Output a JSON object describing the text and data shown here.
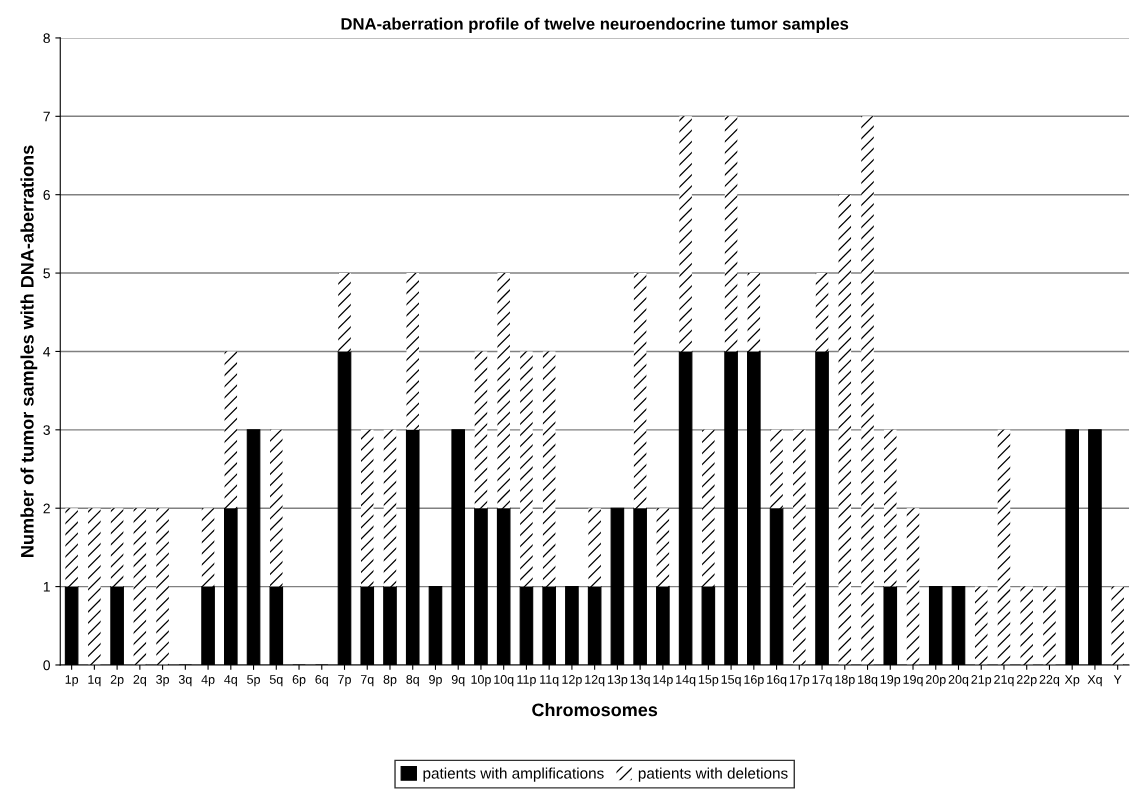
{
  "chart_data": {
    "type": "bar",
    "stacked": true,
    "title": "DNA-aberration profile of twelve neuroendocrine tumor samples",
    "xlabel": "Chromosomes",
    "ylabel": "Number of tumor samples with DNA-aberrations",
    "categories": [
      "1p",
      "1q",
      "2p",
      "2q",
      "3p",
      "3q",
      "4p",
      "4q",
      "5p",
      "5q",
      "6p",
      "6q",
      "7p",
      "7q",
      "8p",
      "8q",
      "9p",
      "9q",
      "10p",
      "10q",
      "11p",
      "11q",
      "12p",
      "12q",
      "13p",
      "13q",
      "14p",
      "14q",
      "15p",
      "15q",
      "16p",
      "16q",
      "17p",
      "17q",
      "18p",
      "18q",
      "19p",
      "19q",
      "20p",
      "20q",
      "21p",
      "21q",
      "22p",
      "22q",
      "Xp",
      "Xq",
      "Y"
    ],
    "series": [
      {
        "name": "patients with amplifications",
        "color": "#000000",
        "values": [
          1,
          0,
          1,
          0,
          0,
          0,
          1,
          2,
          3,
          1,
          0,
          0,
          4,
          1,
          1,
          3,
          1,
          3,
          2,
          2,
          1,
          1,
          1,
          1,
          2,
          2,
          1,
          4,
          1,
          4,
          4,
          2,
          0,
          4,
          0,
          0,
          1,
          0,
          1,
          1,
          0,
          0,
          0,
          0,
          3,
          3,
          0
        ]
      },
      {
        "name": "patients with deletions",
        "color": "#ffffff",
        "values": [
          1,
          2,
          1,
          2,
          2,
          0,
          1,
          2,
          0,
          2,
          0,
          0,
          1,
          2,
          2,
          2,
          0,
          0,
          2,
          3,
          3,
          3,
          0,
          1,
          0,
          3,
          1,
          3,
          2,
          3,
          1,
          1,
          3,
          1,
          6,
          7,
          2,
          2,
          0,
          0,
          1,
          3,
          1,
          1,
          0,
          0,
          1
        ]
      }
    ],
    "ylim": [
      0,
      8
    ],
    "yticks": [
      0,
      1,
      2,
      3,
      4,
      5,
      6,
      7,
      8
    ],
    "grid": "y",
    "legend": "bottom"
  }
}
